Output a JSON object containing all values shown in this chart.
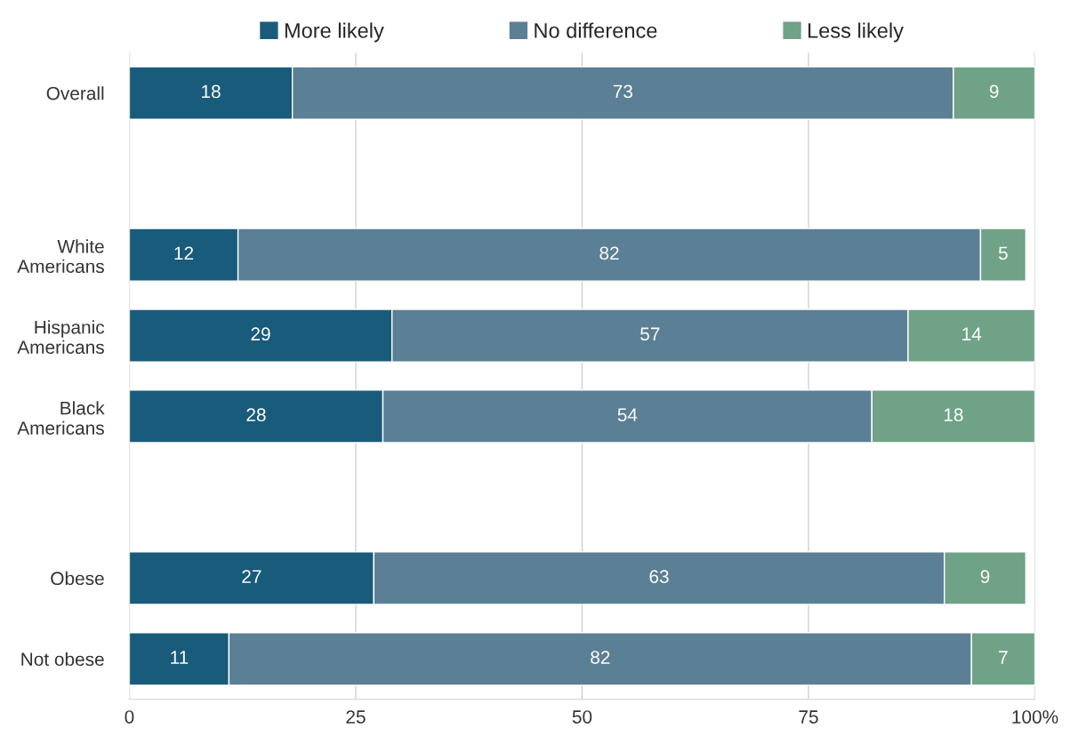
{
  "chart_data": {
    "type": "bar",
    "orientation": "horizontal",
    "stacked": true,
    "categories": [
      "Overall",
      null,
      "White\nAmericans",
      "Hispanic\nAmericans",
      "Black\nAmericans",
      null,
      "Obese",
      "Not obese"
    ],
    "series": [
      {
        "name": "More likely",
        "color": "#195b7a",
        "values": [
          18,
          null,
          12,
          29,
          28,
          null,
          27,
          11
        ]
      },
      {
        "name": "No difference",
        "color": "#5b7f95",
        "values": [
          73,
          null,
          82,
          57,
          54,
          null,
          63,
          82
        ]
      },
      {
        "name": "Less likely",
        "color": "#6fa287",
        "values": [
          9,
          null,
          5,
          14,
          18,
          null,
          9,
          7
        ]
      }
    ],
    "xlim": [
      0,
      100
    ],
    "xticks": [
      0,
      25,
      50,
      75,
      {
        "value": 100,
        "label": "100%"
      }
    ],
    "grid": "x",
    "legend": "top",
    "data_labels": true
  }
}
